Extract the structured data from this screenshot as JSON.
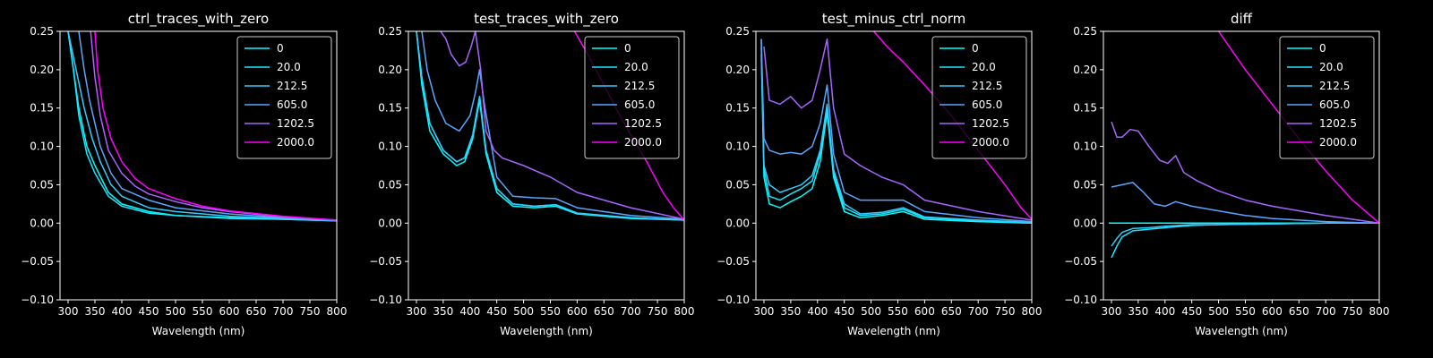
{
  "chart_data": [
    {
      "type": "line",
      "title": "ctrl_traces_with_zero",
      "xlabel": "Wavelength (nm)",
      "ylabel": "",
      "xlim": [
        285,
        800
      ],
      "ylim": [
        -0.1,
        0.25
      ],
      "xticks": [
        300,
        350,
        400,
        450,
        500,
        550,
        600,
        650,
        700,
        750,
        800
      ],
      "yticks": [
        -0.1,
        -0.05,
        0.0,
        0.05,
        0.1,
        0.15,
        0.2,
        0.25
      ],
      "xtick_labels": [
        "300",
        "350",
        "400",
        "450",
        "500",
        "550",
        "600",
        "650",
        "700",
        "750",
        "800"
      ],
      "ytick_labels": [
        "−0.10",
        "−0.05",
        "0.00",
        "0.05",
        "0.10",
        "0.15",
        "0.20",
        "0.25"
      ],
      "grid": false,
      "legend": "upper-right",
      "series": [
        {
          "name": "0",
          "color": "#00ffff",
          "x": [
            300,
            310,
            320,
            335,
            350,
            375,
            400,
            450,
            500,
            600,
            700,
            800
          ],
          "y": [
            0.25,
            0.2,
            0.15,
            0.1,
            0.075,
            0.04,
            0.025,
            0.015,
            0.01,
            0.007,
            0.005,
            0.003
          ]
        },
        {
          "name": "20.0",
          "color": "#1ae5ff",
          "x": [
            300,
            310,
            320,
            335,
            350,
            375,
            400,
            450,
            500,
            600,
            700,
            800
          ],
          "y": [
            0.25,
            0.2,
            0.14,
            0.09,
            0.065,
            0.035,
            0.022,
            0.013,
            0.01,
            0.006,
            0.005,
            0.003
          ]
        },
        {
          "name": "212.5",
          "color": "#33ccff",
          "x": [
            300,
            315,
            330,
            345,
            360,
            380,
            400,
            450,
            500,
            600,
            700,
            800
          ],
          "y": [
            0.25,
            0.2,
            0.15,
            0.11,
            0.08,
            0.05,
            0.035,
            0.02,
            0.015,
            0.009,
            0.006,
            0.003
          ]
        },
        {
          "name": "605.0",
          "color": "#5aa5ff",
          "x": [
            320,
            330,
            340,
            350,
            360,
            380,
            400,
            450,
            500,
            600,
            700,
            800
          ],
          "y": [
            0.25,
            0.2,
            0.16,
            0.13,
            0.1,
            0.065,
            0.045,
            0.03,
            0.02,
            0.012,
            0.007,
            0.004
          ]
        },
        {
          "name": "1202.5",
          "color": "#a865ff",
          "x": [
            342,
            350,
            360,
            375,
            400,
            425,
            450,
            500,
            550,
            600,
            700,
            800
          ],
          "y": [
            0.25,
            0.19,
            0.14,
            0.095,
            0.065,
            0.048,
            0.038,
            0.028,
            0.02,
            0.015,
            0.008,
            0.004
          ]
        },
        {
          "name": "2000.0",
          "color": "#ff00ff",
          "x": [
            350,
            355,
            365,
            380,
            400,
            425,
            450,
            500,
            550,
            600,
            700,
            800
          ],
          "y": [
            0.25,
            0.2,
            0.15,
            0.11,
            0.08,
            0.058,
            0.045,
            0.032,
            0.022,
            0.016,
            0.009,
            0.004
          ]
        }
      ]
    },
    {
      "type": "line",
      "title": "test_traces_with_zero",
      "xlabel": "Wavelength (nm)",
      "ylabel": "",
      "xlim": [
        285,
        800
      ],
      "ylim": [
        -0.1,
        0.25
      ],
      "xticks": [
        300,
        350,
        400,
        450,
        500,
        550,
        600,
        650,
        700,
        750,
        800
      ],
      "yticks": [
        -0.1,
        -0.05,
        0.0,
        0.05,
        0.1,
        0.15,
        0.2,
        0.25
      ],
      "xtick_labels": [
        "300",
        "350",
        "400",
        "450",
        "500",
        "550",
        "600",
        "650",
        "700",
        "750",
        "800"
      ],
      "ytick_labels": [
        "−0.10",
        "−0.05",
        "0.00",
        "0.05",
        "0.10",
        "0.15",
        "0.20",
        "0.25"
      ],
      "grid": false,
      "legend": "upper-right",
      "series": [
        {
          "name": "0",
          "color": "#00ffff",
          "x": [
            300,
            310,
            325,
            350,
            375,
            390,
            405,
            418,
            430,
            450,
            480,
            520,
            560,
            600,
            700,
            800
          ],
          "y": [
            0.25,
            0.18,
            0.12,
            0.09,
            0.075,
            0.08,
            0.11,
            0.16,
            0.09,
            0.04,
            0.022,
            0.02,
            0.022,
            0.012,
            0.006,
            0.004
          ]
        },
        {
          "name": "20.0",
          "color": "#1ae5ff",
          "x": [
            300,
            310,
            325,
            350,
            375,
            390,
            405,
            418,
            430,
            450,
            480,
            520,
            560,
            600,
            700,
            800
          ],
          "y": [
            0.25,
            0.19,
            0.13,
            0.095,
            0.08,
            0.085,
            0.115,
            0.165,
            0.095,
            0.045,
            0.025,
            0.022,
            0.024,
            0.013,
            0.007,
            0.004
          ]
        },
        {
          "name": "212.5",
          "color": "#33ccff",
          "x": [
            300,
            310,
            325,
            350,
            375,
            390,
            405,
            418,
            430,
            450,
            480,
            520,
            560,
            600,
            700,
            800
          ],
          "y": [
            0.25,
            0.19,
            0.13,
            0.095,
            0.08,
            0.085,
            0.115,
            0.165,
            0.095,
            0.045,
            0.025,
            0.022,
            0.024,
            0.013,
            0.007,
            0.004
          ]
        },
        {
          "name": "605.0",
          "color": "#5aa5ff",
          "x": [
            310,
            320,
            335,
            355,
            380,
            400,
            410,
            418,
            428,
            450,
            480,
            520,
            560,
            600,
            700,
            800
          ],
          "y": [
            0.25,
            0.2,
            0.16,
            0.13,
            0.12,
            0.14,
            0.17,
            0.2,
            0.15,
            0.06,
            0.035,
            0.033,
            0.032,
            0.02,
            0.01,
            0.005
          ]
        },
        {
          "name": "1202.5",
          "color": "#a865ff",
          "x": [
            345,
            355,
            365,
            380,
            392,
            402,
            410,
            420,
            430,
            445,
            460,
            500,
            550,
            600,
            700,
            800
          ],
          "y": [
            0.25,
            0.24,
            0.22,
            0.205,
            0.21,
            0.23,
            0.25,
            0.2,
            0.12,
            0.095,
            0.085,
            0.075,
            0.06,
            0.04,
            0.02,
            0.005
          ]
        },
        {
          "name": "2000.0",
          "color": "#ff00ff",
          "x": [
            595,
            620,
            650,
            680,
            700,
            730,
            760,
            780,
            800
          ],
          "y": [
            0.25,
            0.22,
            0.18,
            0.14,
            0.115,
            0.08,
            0.04,
            0.02,
            0.004
          ]
        }
      ]
    },
    {
      "type": "line",
      "title": "test_minus_ctrl_norm",
      "xlabel": "Wavelength (nm)",
      "ylabel": "",
      "xlim": [
        285,
        800
      ],
      "ylim": [
        -0.1,
        0.25
      ],
      "xticks": [
        300,
        350,
        400,
        450,
        500,
        550,
        600,
        650,
        700,
        750,
        800
      ],
      "yticks": [
        -0.1,
        -0.05,
        0.0,
        0.05,
        0.1,
        0.15,
        0.2,
        0.25
      ],
      "xtick_labels": [
        "300",
        "350",
        "400",
        "450",
        "500",
        "550",
        "600",
        "650",
        "700",
        "750",
        "800"
      ],
      "ytick_labels": [
        "−0.10",
        "−0.05",
        "0.00",
        "0.05",
        "0.10",
        "0.15",
        "0.20",
        "0.25"
      ],
      "grid": false,
      "legend": "upper-right",
      "series": [
        {
          "name": "0",
          "color": "#00ffff",
          "x": [
            295,
            300,
            310,
            330,
            350,
            370,
            390,
            405,
            418,
            430,
            450,
            480,
            520,
            560,
            600,
            700,
            800
          ],
          "y": [
            0.22,
            0.06,
            0.025,
            0.02,
            0.028,
            0.035,
            0.045,
            0.08,
            0.145,
            0.06,
            0.015,
            0.007,
            0.01,
            0.015,
            0.005,
            0.002,
            0.0
          ]
        },
        {
          "name": "20.0",
          "color": "#1ae5ff",
          "x": [
            295,
            300,
            310,
            330,
            350,
            370,
            390,
            405,
            418,
            430,
            450,
            480,
            520,
            560,
            600,
            700,
            800
          ],
          "y": [
            0.23,
            0.07,
            0.035,
            0.03,
            0.038,
            0.045,
            0.055,
            0.09,
            0.15,
            0.065,
            0.02,
            0.01,
            0.012,
            0.018,
            0.007,
            0.003,
            0.0
          ]
        },
        {
          "name": "212.5",
          "color": "#33ccff",
          "x": [
            295,
            300,
            310,
            330,
            350,
            370,
            390,
            405,
            418,
            430,
            450,
            480,
            520,
            560,
            600,
            700,
            800
          ],
          "y": [
            0.24,
            0.075,
            0.05,
            0.04,
            0.045,
            0.05,
            0.062,
            0.095,
            0.155,
            0.07,
            0.025,
            0.012,
            0.014,
            0.02,
            0.008,
            0.004,
            0.001
          ]
        },
        {
          "name": "605.0",
          "color": "#5aa5ff",
          "x": [
            295,
            300,
            310,
            330,
            350,
            370,
            390,
            405,
            418,
            430,
            450,
            480,
            520,
            560,
            600,
            700,
            800
          ],
          "y": [
            0.24,
            0.11,
            0.095,
            0.09,
            0.092,
            0.09,
            0.1,
            0.13,
            0.18,
            0.09,
            0.04,
            0.03,
            0.03,
            0.03,
            0.015,
            0.007,
            0.002
          ]
        },
        {
          "name": "1202.5",
          "color": "#a865ff",
          "x": [
            300,
            310,
            330,
            350,
            370,
            390,
            405,
            418,
            430,
            450,
            480,
            520,
            560,
            600,
            700,
            800
          ],
          "y": [
            0.23,
            0.16,
            0.155,
            0.165,
            0.15,
            0.16,
            0.2,
            0.24,
            0.15,
            0.09,
            0.075,
            0.06,
            0.05,
            0.03,
            0.015,
            0.004
          ]
        },
        {
          "name": "2000.0",
          "color": "#ff00ff",
          "x": [
            505,
            530,
            560,
            600,
            650,
            700,
            750,
            780,
            800
          ],
          "y": [
            0.25,
            0.23,
            0.21,
            0.18,
            0.14,
            0.095,
            0.05,
            0.02,
            0.005
          ]
        }
      ]
    },
    {
      "type": "line",
      "title": "diff",
      "xlabel": "Wavelength (nm)",
      "ylabel": "",
      "xlim": [
        285,
        800
      ],
      "ylim": [
        -0.1,
        0.25
      ],
      "xticks": [
        300,
        350,
        400,
        450,
        500,
        550,
        600,
        650,
        700,
        750,
        800
      ],
      "yticks": [
        -0.1,
        -0.05,
        0.0,
        0.05,
        0.1,
        0.15,
        0.2,
        0.25
      ],
      "xtick_labels": [
        "300",
        "350",
        "400",
        "450",
        "500",
        "550",
        "600",
        "650",
        "700",
        "750",
        "800"
      ],
      "ytick_labels": [
        "−0.10",
        "−0.05",
        "0.00",
        "0.05",
        "0.10",
        "0.15",
        "0.20",
        "0.25"
      ],
      "grid": false,
      "legend": "upper-right",
      "series": [
        {
          "name": "0",
          "color": "#00ffff",
          "x": [
            295,
            800
          ],
          "y": [
            0.0,
            0.0
          ]
        },
        {
          "name": "20.0",
          "color": "#1ae5ff",
          "x": [
            300,
            310,
            320,
            340,
            370,
            400,
            450,
            500,
            600,
            700,
            800
          ],
          "y": [
            -0.045,
            -0.03,
            -0.018,
            -0.01,
            -0.008,
            -0.006,
            -0.003,
            -0.002,
            -0.001,
            0.0,
            0.0
          ]
        },
        {
          "name": "212.5",
          "color": "#33ccff",
          "x": [
            300,
            310,
            320,
            340,
            370,
            400,
            450,
            500,
            600,
            700,
            800
          ],
          "y": [
            -0.03,
            -0.02,
            -0.012,
            -0.007,
            -0.006,
            -0.004,
            -0.002,
            -0.002,
            -0.001,
            0.0,
            0.0
          ]
        },
        {
          "name": "605.0",
          "color": "#5aa5ff",
          "x": [
            300,
            320,
            340,
            360,
            380,
            400,
            420,
            450,
            500,
            550,
            600,
            700,
            800
          ],
          "y": [
            0.047,
            0.05,
            0.053,
            0.04,
            0.025,
            0.022,
            0.028,
            0.022,
            0.016,
            0.01,
            0.006,
            0.002,
            0.0
          ]
        },
        {
          "name": "1202.5",
          "color": "#a865ff",
          "x": [
            300,
            310,
            320,
            335,
            350,
            370,
            390,
            405,
            420,
            435,
            460,
            500,
            550,
            600,
            700,
            800
          ],
          "y": [
            0.132,
            0.112,
            0.112,
            0.122,
            0.12,
            0.1,
            0.082,
            0.078,
            0.088,
            0.066,
            0.055,
            0.042,
            0.03,
            0.022,
            0.01,
            0.0
          ]
        },
        {
          "name": "2000.0",
          "color": "#ff00ff",
          "x": [
            500,
            550,
            600,
            650,
            700,
            750,
            800
          ],
          "y": [
            0.25,
            0.2,
            0.155,
            0.11,
            0.068,
            0.03,
            0.0
          ]
        }
      ]
    }
  ]
}
